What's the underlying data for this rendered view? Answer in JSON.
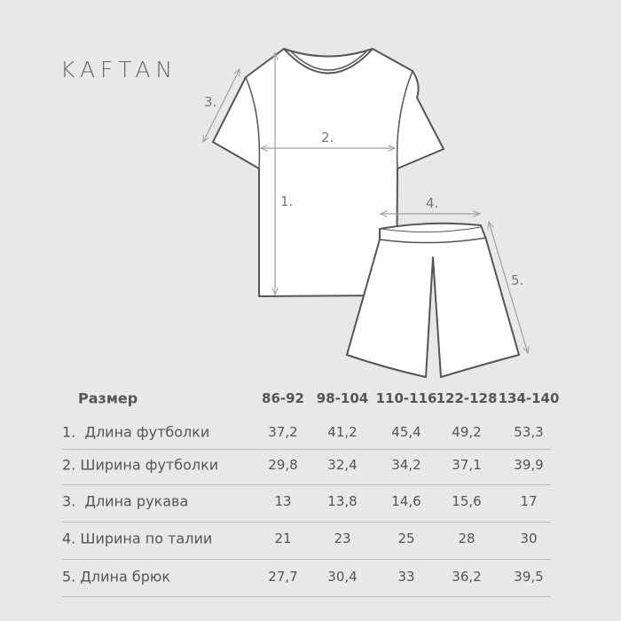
{
  "brand": "KAFTAN",
  "measure_labels": [
    "1.",
    "2.",
    "3.",
    "4.",
    "5."
  ],
  "table": {
    "header_label": "Размер",
    "sizes": [
      "86-92",
      "98-104",
      "110-116",
      "122-128",
      "134-140"
    ],
    "rows": [
      {
        "label": "1.  Длина футболки",
        "values": [
          "37,2",
          "41,2",
          "45,4",
          "49,2",
          "53,3"
        ]
      },
      {
        "label": "2. Ширина футболки",
        "values": [
          "29,8",
          "32,4",
          "34,2",
          "37,1",
          "39,9"
        ]
      },
      {
        "label": "3.  Длина рукава",
        "values": [
          "13",
          "13,8",
          "14,6",
          "15,6",
          "17"
        ]
      },
      {
        "label": "4. Ширина по талии",
        "values": [
          "21",
          "23",
          "25",
          "28",
          "30"
        ]
      },
      {
        "label": "5. Длина брюк",
        "values": [
          "27,7",
          "30,4",
          "33",
          "36,2",
          "39,5"
        ]
      }
    ]
  },
  "colors": {
    "background": "#e8e8e8",
    "outline": "#555555",
    "measure_line": "#a0a0a0"
  }
}
